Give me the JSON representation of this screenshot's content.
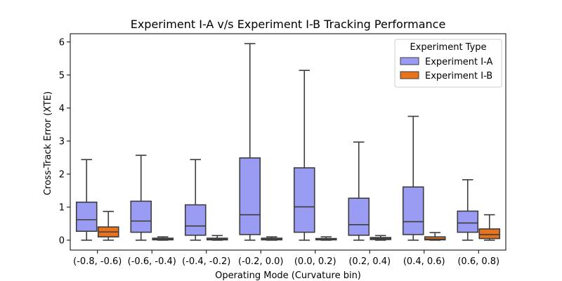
{
  "chart_data": {
    "type": "box",
    "title": "Experiment I-A v/s Experiment I-B Tracking Performance",
    "xlabel": "Operating Mode (Curvature bin)",
    "ylabel": "Cross-Track Error (XTE)",
    "ylim": [
      -0.3,
      6.25
    ],
    "yticks": [
      0,
      1,
      2,
      3,
      4,
      5,
      6
    ],
    "categories": [
      "(-0.8, -0.6)",
      "(-0.6, -0.4)",
      "(-0.4, -0.2)",
      "(-0.2, 0.0)",
      "(0.0, 0.2)",
      "(0.2, 0.4)",
      "(0.4, 0.6)",
      "(0.6, 0.8)"
    ],
    "legend": {
      "title": "Experiment Type",
      "position": "top-right"
    },
    "series": [
      {
        "name": "Experiment I-A",
        "color": "#9a9bf2",
        "boxes": [
          {
            "min": 0.0,
            "q1": 0.27,
            "median": 0.62,
            "q3": 1.15,
            "max": 2.44
          },
          {
            "min": 0.0,
            "q1": 0.24,
            "median": 0.58,
            "q3": 1.18,
            "max": 2.57
          },
          {
            "min": 0.0,
            "q1": 0.15,
            "median": 0.43,
            "q3": 1.07,
            "max": 2.44
          },
          {
            "min": 0.0,
            "q1": 0.17,
            "median": 0.77,
            "q3": 2.49,
            "max": 5.95
          },
          {
            "min": 0.0,
            "q1": 0.24,
            "median": 1.01,
            "q3": 2.19,
            "max": 5.14
          },
          {
            "min": 0.0,
            "q1": 0.15,
            "median": 0.47,
            "q3": 1.27,
            "max": 2.97
          },
          {
            "min": 0.0,
            "q1": 0.17,
            "median": 0.56,
            "q3": 1.61,
            "max": 3.75
          },
          {
            "min": 0.0,
            "q1": 0.24,
            "median": 0.52,
            "q3": 0.88,
            "max": 1.83
          }
        ]
      },
      {
        "name": "Experiment I-B",
        "color": "#e8731c",
        "boxes": [
          {
            "min": 0.0,
            "q1": 0.1,
            "median": 0.25,
            "q3": 0.4,
            "max": 0.87
          },
          {
            "min": 0.0,
            "q1": 0.01,
            "median": 0.03,
            "q3": 0.06,
            "max": 0.1
          },
          {
            "min": 0.0,
            "q1": 0.01,
            "median": 0.03,
            "q3": 0.06,
            "max": 0.14
          },
          {
            "min": 0.0,
            "q1": 0.01,
            "median": 0.04,
            "q3": 0.06,
            "max": 0.1
          },
          {
            "min": 0.0,
            "q1": 0.01,
            "median": 0.03,
            "q3": 0.05,
            "max": 0.1
          },
          {
            "min": 0.0,
            "q1": 0.02,
            "median": 0.05,
            "q3": 0.08,
            "max": 0.14
          },
          {
            "min": 0.0,
            "q1": 0.01,
            "median": 0.03,
            "q3": 0.1,
            "max": 0.23
          },
          {
            "min": 0.0,
            "q1": 0.05,
            "median": 0.17,
            "q3": 0.34,
            "max": 0.77
          }
        ]
      }
    ]
  }
}
